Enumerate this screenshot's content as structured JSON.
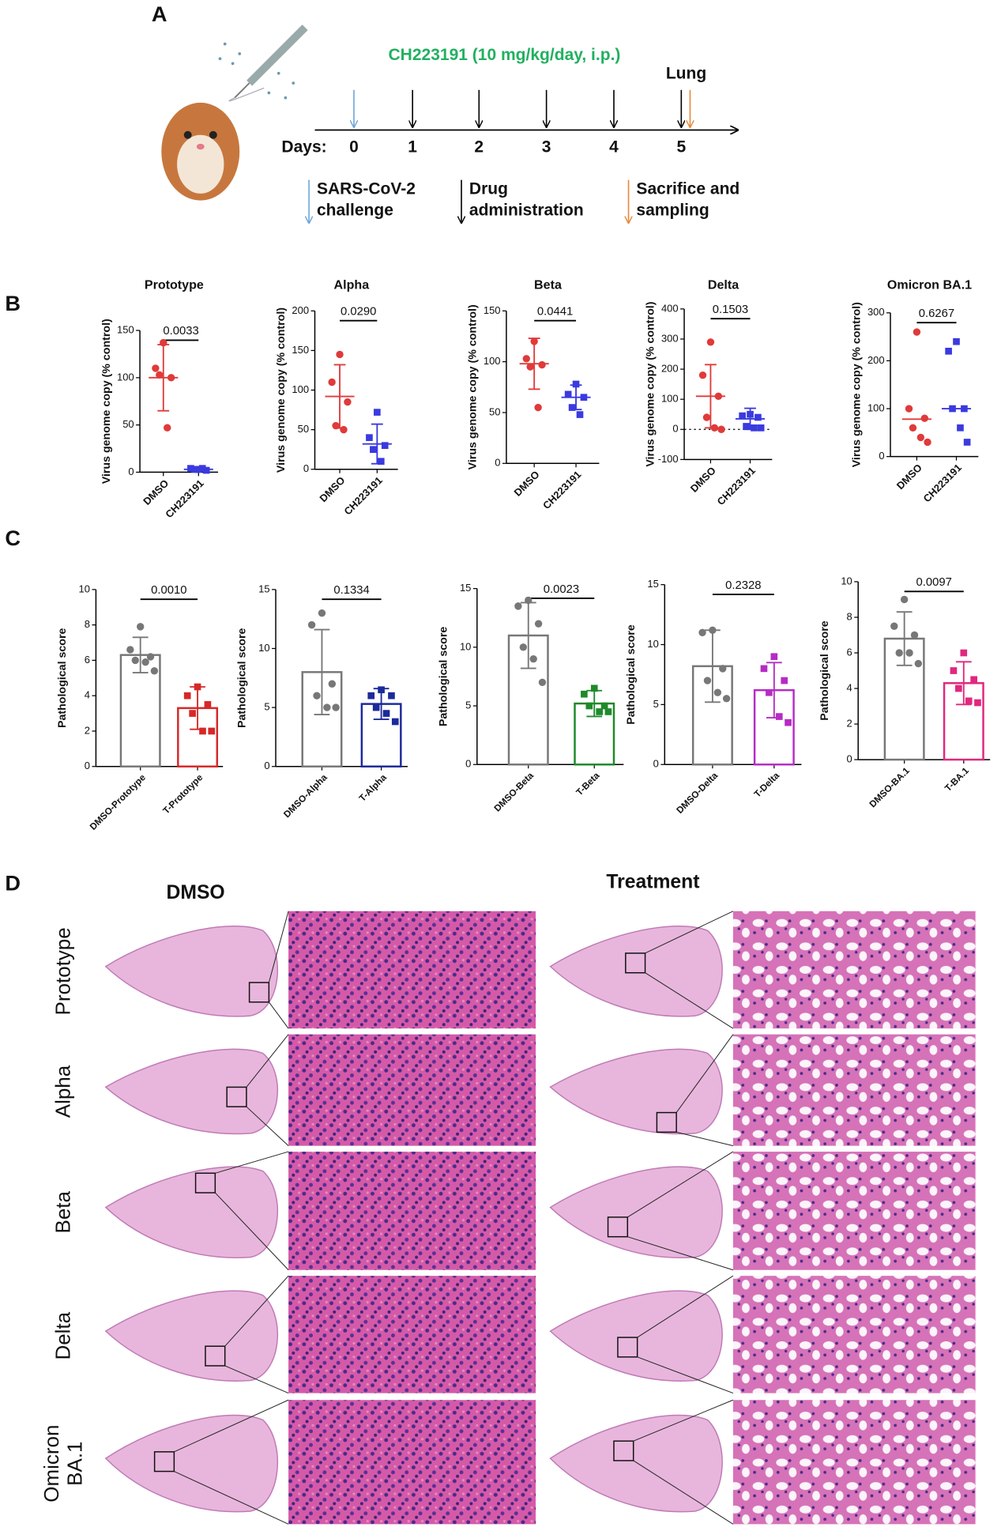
{
  "panel_a": {
    "label": "A",
    "drug": "CH223191 (10 mg/kg/day, i.p.)",
    "organ": "Lung",
    "days_label": "Days:",
    "days": [
      0,
      1,
      2,
      3,
      4,
      5
    ],
    "legend": [
      {
        "lines": [
          "SARS-CoV-2",
          "challenge"
        ],
        "color": "#6ea6d6"
      },
      {
        "lines": [
          "Drug",
          "administration"
        ],
        "color": "#000000"
      },
      {
        "lines": [
          "Sacrifice and",
          "sampling"
        ],
        "color": "#e8883a"
      }
    ]
  },
  "panel_b_label": "B",
  "panel_c_label": "C",
  "chart_data": [
    {
      "type": "dot",
      "title": "Prototype",
      "ylabel": "Virus genome copy (% control)",
      "categories": [
        "DMSO",
        "CH223191"
      ],
      "groups": [
        {
          "color": "#e03a3a",
          "marker": "circle",
          "values": [
            137,
            110,
            100,
            103,
            47
          ],
          "center": 100,
          "error": 35
        },
        {
          "color": "#3a3ae0",
          "marker": "square",
          "values": [
            3,
            4,
            2,
            3,
            4
          ],
          "center": 3
        }
      ],
      "ylim": [
        0,
        150
      ],
      "yticks": [
        0,
        50,
        100,
        150
      ],
      "annotation": "0.0033"
    },
    {
      "type": "dot",
      "title": "Alpha",
      "ylabel": "Virus genome copy (% control)",
      "categories": [
        "DMSO",
        "CH223191"
      ],
      "groups": [
        {
          "color": "#e03a3a",
          "marker": "circle",
          "values": [
            145,
            110,
            85,
            55,
            50
          ],
          "center": 92,
          "error": 40
        },
        {
          "color": "#3a3ae0",
          "marker": "square",
          "values": [
            72,
            40,
            30,
            25,
            10
          ],
          "center": 32,
          "error": 25
        }
      ],
      "ylim": [
        0,
        200
      ],
      "yticks": [
        0,
        50,
        100,
        150,
        200
      ],
      "annotation": "0.0290"
    },
    {
      "type": "dot",
      "title": "Beta",
      "ylabel": "Virus genome copy (% control)",
      "categories": [
        "DMSO",
        "CH223191"
      ],
      "groups": [
        {
          "color": "#e03a3a",
          "marker": "circle",
          "values": [
            120,
            103,
            97,
            95,
            55
          ],
          "center": 98,
          "error": 25
        },
        {
          "color": "#3a3ae0",
          "marker": "square",
          "values": [
            78,
            68,
            65,
            55,
            48
          ],
          "center": 65,
          "error": 12
        }
      ],
      "ylim": [
        0,
        150
      ],
      "yticks": [
        0,
        50,
        100,
        150
      ],
      "annotation": "0.0441"
    },
    {
      "type": "dot",
      "title": "Delta",
      "ylabel": "Virus genome copy (% control)",
      "categories": [
        "DMSO",
        "CH223191"
      ],
      "groups": [
        {
          "color": "#e03a3a",
          "marker": "circle",
          "values": [
            290,
            180,
            110,
            40,
            5,
            0
          ],
          "center": 110,
          "error": 105
        },
        {
          "color": "#3a3ae0",
          "marker": "square",
          "values": [
            50,
            45,
            40,
            10,
            5,
            5
          ],
          "center": 35,
          "error": 35
        }
      ],
      "ylim": [
        -100,
        400
      ],
      "yticks": [
        -100,
        0,
        100,
        200,
        300,
        400
      ],
      "refline": 0,
      "annotation": "0.1503"
    },
    {
      "type": "dot",
      "title": "Omicron BA.1",
      "ylabel": "Virus genome copy (% control)",
      "categories": [
        "DMSO",
        "CH223191"
      ],
      "groups": [
        {
          "color": "#e03a3a",
          "marker": "circle",
          "values": [
            260,
            100,
            80,
            60,
            40,
            30
          ],
          "center": 78
        },
        {
          "color": "#3a3ae0",
          "marker": "square",
          "values": [
            240,
            220,
            100,
            100,
            60,
            30
          ],
          "center": 100
        }
      ],
      "ylim": [
        0,
        300
      ],
      "yticks": [
        0,
        100,
        200,
        300
      ],
      "annotation": "0.6267"
    },
    {
      "type": "bar",
      "ylabel": "Pathological score",
      "categories": [
        "DMSO-Prototype",
        "T-Prototype"
      ],
      "groups": [
        {
          "color": "#777777",
          "marker": "circle",
          "bar": 6.3,
          "error": 1.0,
          "values": [
            7.9,
            6.6,
            6.2,
            6.0,
            5.9,
            5.4
          ]
        },
        {
          "color": "#d62828",
          "marker": "square",
          "bar": 3.3,
          "error": 1.2,
          "values": [
            4.5,
            4.0,
            3.5,
            3.0,
            2.0,
            2.0
          ]
        }
      ],
      "ylim": [
        0,
        10
      ],
      "yticks": [
        0,
        2,
        4,
        6,
        8,
        10
      ],
      "annotation": "0.0010"
    },
    {
      "type": "bar",
      "ylabel": "Pathological score",
      "categories": [
        "DMSO-Alpha",
        "T-Alpha"
      ],
      "groups": [
        {
          "color": "#777777",
          "marker": "circle",
          "bar": 8.0,
          "error": 3.6,
          "values": [
            13,
            12,
            7,
            6,
            5,
            5
          ]
        },
        {
          "color": "#1c2a9a",
          "marker": "square",
          "bar": 5.3,
          "error": 1.3,
          "values": [
            6.5,
            6.0,
            6.0,
            5.0,
            4.5,
            3.8
          ]
        }
      ],
      "ylim": [
        0,
        15
      ],
      "yticks": [
        0,
        5,
        10,
        15
      ],
      "annotation": "0.1334"
    },
    {
      "type": "bar",
      "ylabel": "Pathological score",
      "categories": [
        "DMSO-Beta",
        "T-Beta"
      ],
      "groups": [
        {
          "color": "#777777",
          "marker": "circle",
          "bar": 11,
          "error": 2.8,
          "values": [
            14,
            13.5,
            12,
            10,
            9,
            7
          ]
        },
        {
          "color": "#1e8a2a",
          "marker": "square",
          "bar": 5.2,
          "error": 1.1,
          "values": [
            6.5,
            6,
            5,
            5,
            4.5,
            4.5
          ]
        }
      ],
      "ylim": [
        0,
        15
      ],
      "yticks": [
        0,
        5,
        10,
        15
      ],
      "annotation": "0.0023"
    },
    {
      "type": "bar",
      "ylabel": "Pathological score",
      "categories": [
        "DMSO-Delta",
        "T-Delta"
      ],
      "groups": [
        {
          "color": "#777777",
          "marker": "circle",
          "bar": 8.2,
          "error": 3,
          "values": [
            11.2,
            11,
            8,
            7,
            6,
            5.5
          ]
        },
        {
          "color": "#b52cc4",
          "marker": "square",
          "bar": 6.2,
          "error": 2.3,
          "values": [
            9,
            8,
            7,
            6,
            4,
            3.5
          ]
        }
      ],
      "ylim": [
        0,
        15
      ],
      "yticks": [
        0,
        5,
        10,
        15
      ],
      "annotation": "0.2328"
    },
    {
      "type": "bar",
      "ylabel": "Pathological score",
      "categories": [
        "DMSO-BA.1",
        "T-BA.1"
      ],
      "groups": [
        {
          "color": "#777777",
          "marker": "circle",
          "bar": 6.8,
          "error": 1.5,
          "values": [
            9,
            7.5,
            7,
            6,
            6,
            5.4
          ]
        },
        {
          "color": "#e0287e",
          "marker": "square",
          "bar": 4.3,
          "error": 1.2,
          "values": [
            6,
            5,
            4.5,
            4,
            3.3,
            3.2
          ]
        }
      ],
      "ylim": [
        0,
        10
      ],
      "yticks": [
        0,
        2,
        4,
        6,
        8,
        10
      ],
      "annotation": "0.0097"
    }
  ],
  "panel_d": {
    "label": "D",
    "columns": [
      "DMSO",
      "Treatment"
    ],
    "rows": [
      {
        "lines": [
          "Prototype"
        ]
      },
      {
        "lines": [
          "Alpha"
        ]
      },
      {
        "lines": [
          "Beta"
        ]
      },
      {
        "lines": [
          "Delta"
        ]
      },
      {
        "lines": [
          "Omicron",
          "BA.1"
        ]
      }
    ]
  }
}
